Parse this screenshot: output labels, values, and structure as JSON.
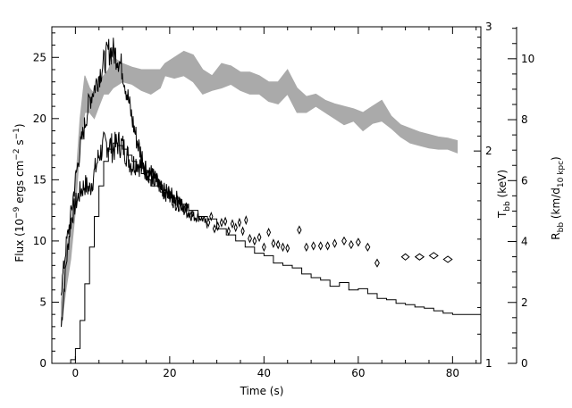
{
  "chart_data": {
    "type": "line",
    "xlabel": "Time (s)",
    "ylabel_left": {
      "main": "Flux (10",
      "exp1": "−9",
      "mid1": " ergs cm",
      "exp2": "−2",
      "mid2": " s",
      "exp3": "−1",
      "tail": ")"
    },
    "ylabel_right_inner": {
      "main": "T",
      "sub": "bb",
      "tail": " (keV)"
    },
    "ylabel_right_outer": {
      "main": "R",
      "sub": "bb",
      "mid": " (km/d",
      "sub2": "10 kpc",
      "tail": ")"
    },
    "xlim": [
      -5,
      86
    ],
    "ylim": [
      0,
      27.5
    ],
    "x_ticks": [
      "0",
      "20",
      "40",
      "60",
      "80"
    ],
    "x_tick_values": [
      0,
      20,
      40,
      60,
      80
    ],
    "y_left_ticks": [
      "0",
      "5",
      "10",
      "15",
      "20",
      "25"
    ],
    "y_left_tick_values": [
      0,
      5,
      10,
      15,
      20,
      25
    ],
    "t_axis": {
      "scale": "log",
      "range": [
        1,
        3
      ],
      "ticks": [
        "1",
        "2",
        "3"
      ],
      "tick_values": [
        1,
        2,
        3
      ]
    },
    "r_axis": {
      "range": [
        0,
        11.05
      ],
      "ticks": [
        "0",
        "2",
        "4",
        "6",
        "8",
        "10"
      ],
      "tick_values": [
        0,
        2,
        4,
        6,
        8,
        10
      ]
    },
    "series": [
      {
        "style": "noisy-line",
        "color": "#000000",
        "x": [
          -3,
          -2,
          -1,
          0,
          1,
          2,
          3,
          4,
          5,
          6,
          7,
          8,
          9,
          10,
          11,
          12,
          13,
          14,
          15,
          16,
          17,
          18,
          19,
          20,
          21,
          22,
          23,
          24,
          25,
          26,
          27,
          28
        ],
        "y": [
          3,
          8,
          11.5,
          13,
          14,
          14.6,
          14.2,
          15.5,
          17,
          17.8,
          18,
          17.5,
          18,
          17.8,
          17,
          16.2,
          16.5,
          16,
          15.8,
          15.5,
          15,
          14.2,
          14,
          13.8,
          13.5,
          13.5,
          12.5,
          12.3,
          12,
          12,
          11.8,
          11.3
        ]
      },
      {
        "style": "noisy-line",
        "color": "#000000",
        "x": [
          -3,
          -2,
          -1,
          0,
          1,
          2,
          3,
          4,
          5,
          6,
          7,
          8,
          9,
          10,
          11,
          12,
          13,
          14,
          15,
          16,
          17,
          18,
          19,
          20,
          21,
          22,
          23,
          24,
          25
        ],
        "y": [
          6,
          9.5,
          12,
          15,
          17.5,
          19.5,
          21.5,
          22.5,
          23.5,
          24.5,
          25.5,
          25.5,
          25,
          24,
          22,
          20,
          18.3,
          17,
          16,
          15.3,
          14.8,
          14.5,
          14,
          13.8,
          13.2,
          13,
          12.8,
          12.5,
          12
        ]
      },
      {
        "style": "step-line",
        "color": "#000000",
        "x": [
          -2,
          -1,
          0,
          1,
          2,
          3,
          4,
          5,
          6,
          7,
          8,
          9,
          10,
          11,
          12,
          13,
          14,
          15,
          16,
          18,
          20,
          22,
          24,
          26,
          28,
          30,
          32,
          34,
          36,
          38,
          40,
          42,
          44,
          46,
          48,
          50,
          52,
          54,
          56,
          58,
          60,
          62,
          64,
          66,
          68,
          70,
          72,
          74,
          76,
          78,
          80,
          82,
          84,
          86
        ],
        "y": [
          0,
          0.3,
          1.2,
          3.5,
          6.5,
          9.5,
          12,
          14.5,
          16.5,
          17.5,
          18,
          17.8,
          17.5,
          17,
          16.5,
          16,
          15.5,
          15,
          14.5,
          14,
          13.5,
          13,
          12.5,
          12,
          11.8,
          11,
          10.5,
          10,
          9.5,
          9,
          8.8,
          8.2,
          8,
          7.8,
          7.3,
          7,
          6.8,
          6.3,
          6.6,
          6,
          6.1,
          5.7,
          5.3,
          5.2,
          4.9,
          4.8,
          4.6,
          4.5,
          4.3,
          4.1,
          4.0,
          4.0,
          4.0,
          3.9
        ]
      },
      {
        "style": "band",
        "color": "#aaaaaa",
        "x": [
          -3,
          -2,
          -1,
          0,
          1,
          2,
          3,
          4,
          5,
          6,
          7,
          8,
          10,
          12,
          14,
          16,
          18,
          19,
          21,
          23,
          25,
          27,
          29,
          31,
          33,
          35,
          37,
          39,
          41,
          43,
          45,
          47,
          49,
          51,
          53,
          55,
          57,
          59,
          61,
          63,
          65,
          67,
          69,
          71,
          73,
          75,
          77,
          79,
          81
        ],
        "low": [
          3.0,
          6.0,
          8.5,
          12.5,
          18.0,
          20.5,
          20.5,
          20.0,
          21.0,
          22.0,
          22.0,
          22.5,
          23.0,
          22.8,
          22.3,
          22.0,
          22.5,
          23.5,
          23.3,
          23.5,
          23.0,
          22.0,
          22.3,
          22.5,
          22.8,
          22.3,
          22.0,
          22.0,
          21.4,
          21.2,
          22.0,
          20.5,
          20.5,
          21.0,
          20.5,
          20.0,
          19.5,
          19.8,
          19.0,
          19.6,
          19.8,
          19.2,
          18.5,
          18.0,
          17.8,
          17.6,
          17.5,
          17.5,
          17.2
        ],
        "high": [
          5.0,
          9.0,
          11.5,
          14.5,
          20.0,
          23.5,
          22.5,
          22.0,
          23.0,
          23.5,
          24.0,
          25.0,
          24.5,
          24.2,
          24.0,
          24.0,
          24.0,
          24.5,
          25.0,
          25.5,
          25.2,
          24.0,
          23.5,
          24.5,
          24.3,
          23.8,
          23.8,
          23.5,
          23.0,
          23.0,
          24.0,
          22.5,
          21.8,
          22.0,
          21.5,
          21.2,
          21.0,
          20.8,
          20.5,
          21.0,
          21.5,
          20.2,
          19.5,
          19.2,
          18.9,
          18.7,
          18.5,
          18.4,
          18.2
        ]
      },
      {
        "style": "diamonds",
        "color": "#000000",
        "x": [
          28.2,
          28.8,
          29.5,
          30.2,
          31,
          31.8,
          32.5,
          33.3,
          34,
          34.8,
          35.5,
          36.2,
          37,
          38,
          39,
          40,
          41,
          42,
          43,
          44,
          45,
          47.5,
          49,
          50.5,
          52,
          53.5,
          55,
          57,
          58.5,
          60,
          62,
          64,
          70,
          73,
          76,
          79
        ],
        "y": [
          11.5,
          12,
          11,
          11.2,
          11.5,
          11.6,
          10.8,
          11.4,
          11.1,
          11.5,
          10.8,
          11.7,
          10.2,
          10.0,
          10.3,
          9.5,
          10.7,
          9.8,
          9.7,
          9.5,
          9.4,
          10.9,
          9.5,
          9.6,
          9.6,
          9.6,
          9.8,
          10.0,
          9.7,
          9.9,
          9.5,
          8.2,
          8.7,
          8.7,
          8.8,
          8.5
        ],
        "widths": [
          0.6,
          0.6,
          0.6,
          0.6,
          0.6,
          0.6,
          0.6,
          0.6,
          0.6,
          0.6,
          0.6,
          0.6,
          0.7,
          0.7,
          0.7,
          0.7,
          0.7,
          0.7,
          0.7,
          0.7,
          0.7,
          0.8,
          0.8,
          0.8,
          0.8,
          0.8,
          0.8,
          0.9,
          0.9,
          0.9,
          0.9,
          0.9,
          1.6,
          1.8,
          1.8,
          1.8
        ],
        "heights": [
          0.6,
          0.6,
          0.6,
          0.6,
          0.6,
          0.6,
          0.6,
          0.6,
          0.6,
          0.6,
          0.6,
          0.6,
          0.6,
          0.6,
          0.6,
          0.6,
          0.6,
          0.6,
          0.6,
          0.6,
          0.6,
          0.6,
          0.6,
          0.6,
          0.6,
          0.6,
          0.6,
          0.6,
          0.6,
          0.6,
          0.6,
          0.6,
          0.5,
          0.5,
          0.5,
          0.5
        ]
      }
    ]
  }
}
